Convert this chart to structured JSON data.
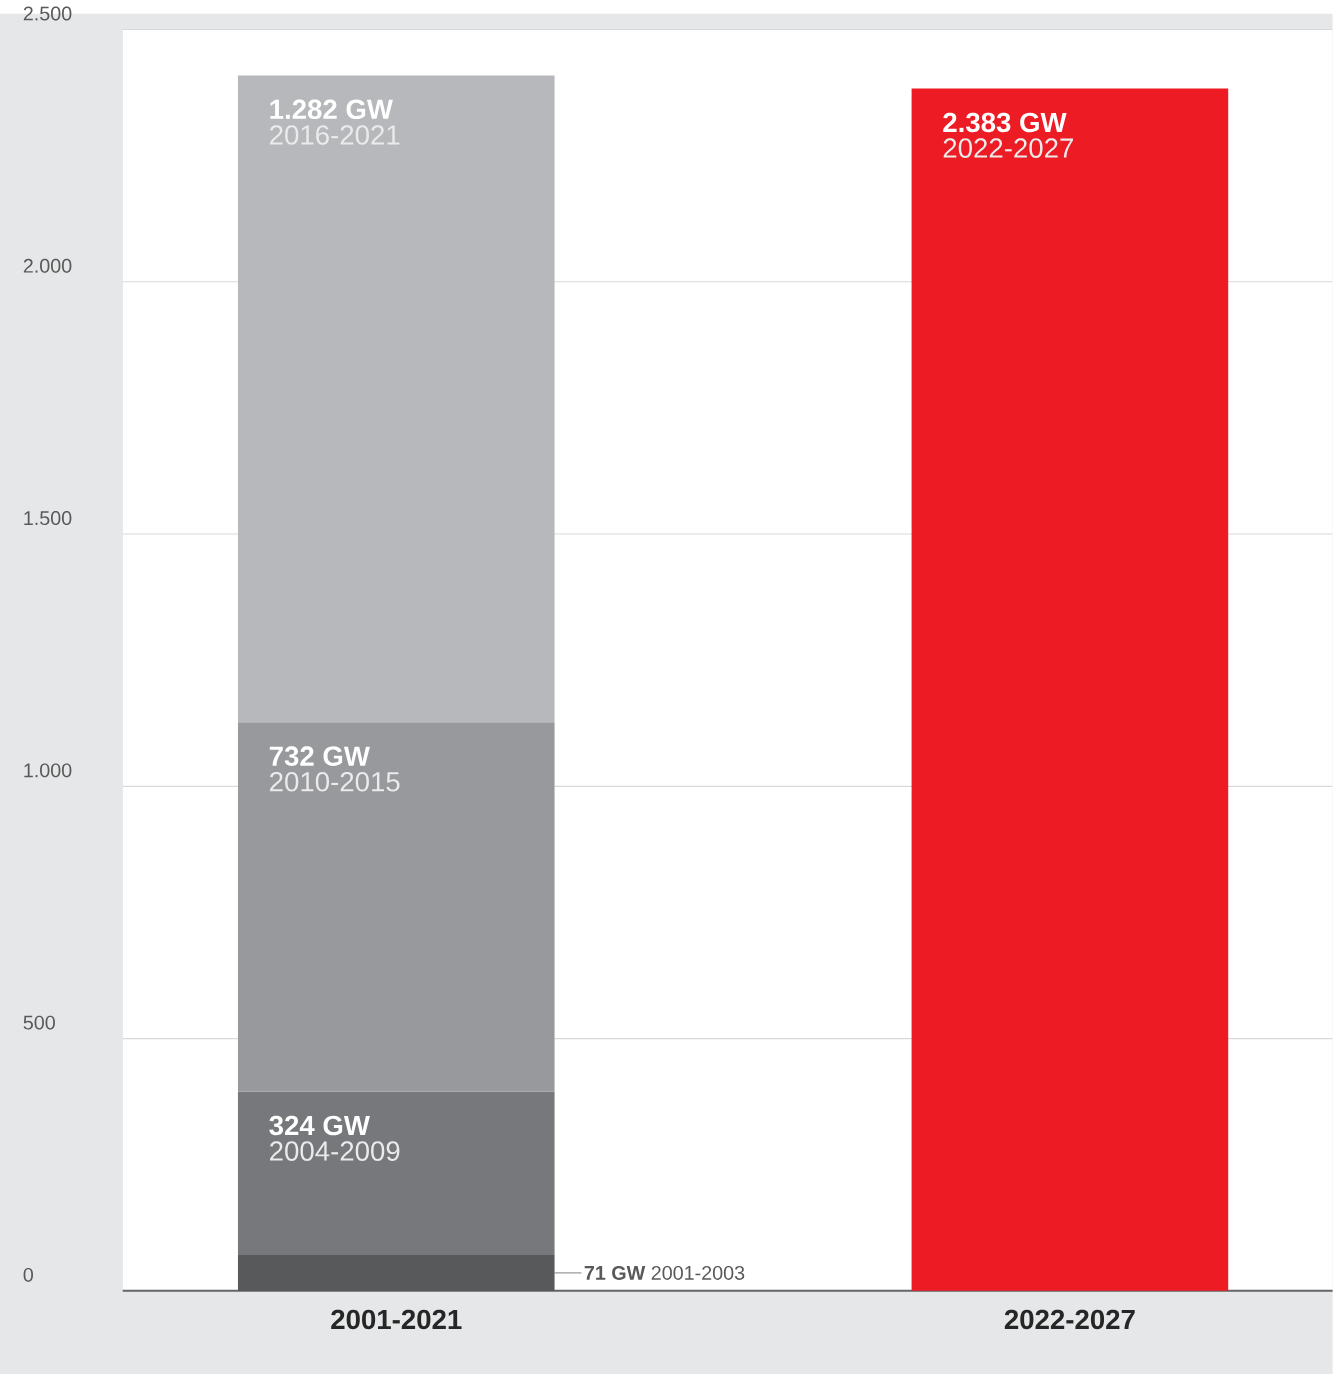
{
  "chart_data": {
    "type": "bar",
    "stacked": true,
    "categories": [
      "2001-2021",
      "2022-2027"
    ],
    "series": [
      {
        "name": "2001-2003",
        "color": "#58595b",
        "values": [
          71,
          null
        ],
        "value_labels": [
          "71 GW",
          null
        ]
      },
      {
        "name": "2004-2009",
        "color": "#77787b",
        "values": [
          324,
          null
        ],
        "value_labels": [
          "324 GW",
          null
        ]
      },
      {
        "name": "2010-2015",
        "color": "#98999c",
        "values": [
          732,
          null
        ],
        "value_labels": [
          "732 GW",
          null
        ]
      },
      {
        "name": "2016-2021",
        "color": "#b7b8bb",
        "values": [
          1282,
          null
        ],
        "value_labels": [
          "1.282 GW",
          null
        ]
      },
      {
        "name": "2022-2027",
        "color": "#ed1c24",
        "values": [
          null,
          2383
        ],
        "value_labels": [
          null,
          "2.383 GW"
        ]
      }
    ],
    "ylim": [
      0,
      2500
    ],
    "yticks": [
      0,
      500,
      {
        "value": 1000,
        "label": "1.000"
      },
      {
        "value": 1500,
        "label": "1.500"
      },
      {
        "value": 2000,
        "label": "2.000"
      },
      {
        "value": 2500,
        "label": "2.500"
      }
    ],
    "grid": "y"
  }
}
